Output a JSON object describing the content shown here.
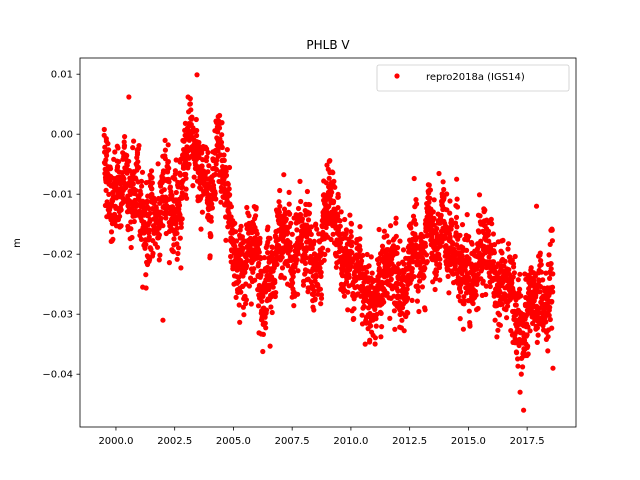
{
  "chart_data": {
    "type": "scatter",
    "title": "PHLB V",
    "xlabel": "",
    "ylabel": "m",
    "xlim": [
      1998.47,
      2019.58
    ],
    "ylim": [
      -0.0488,
      0.0127
    ],
    "xticks": [
      2000.0,
      2002.5,
      2005.0,
      2007.5,
      2010.0,
      2012.5,
      2015.0,
      2017.5
    ],
    "xtick_labels": [
      "2000.0",
      "2002.5",
      "2005.0",
      "2007.5",
      "2010.0",
      "2012.5",
      "2015.0",
      "2017.5"
    ],
    "yticks": [
      0.01,
      0.0,
      -0.01,
      -0.02,
      -0.03,
      -0.04
    ],
    "ytick_labels": [
      "0.01",
      "0.00",
      "−0.01",
      "−0.02",
      "−0.03",
      "−0.04"
    ],
    "grid": false,
    "legend": {
      "placement": "top-right",
      "entries": [
        "repro2018a (IGS14)"
      ]
    },
    "series": [
      {
        "name": "repro2018a (IGS14)",
        "color": "#ff0000",
        "marker": "circle",
        "x_range": [
          1999.5,
          2018.6
        ],
        "trend_x": [
          1999.5,
          2000,
          2000.5,
          2001,
          2001.5,
          2002,
          2002.5,
          2003,
          2003.5,
          2004,
          2004.5,
          2005,
          2005.5,
          2006,
          2006.5,
          2007,
          2007.5,
          2008,
          2008.5,
          2009,
          2009.5,
          2010,
          2010.5,
          2011,
          2011.5,
          2012,
          2012.5,
          2013,
          2013.5,
          2014,
          2014.5,
          2015,
          2015.5,
          2016,
          2016.5,
          2017,
          2017.5,
          2018,
          2018.6
        ],
        "trend_y": [
          -0.003,
          -0.011,
          -0.008,
          -0.012,
          -0.015,
          -0.012,
          -0.008,
          -0.006,
          -0.004,
          -0.008,
          -0.011,
          -0.02,
          -0.021,
          -0.019,
          -0.021,
          -0.019,
          -0.02,
          -0.019,
          -0.021,
          -0.02,
          -0.02,
          -0.021,
          -0.022,
          -0.024,
          -0.024,
          -0.026,
          -0.023,
          -0.023,
          -0.022,
          -0.02,
          -0.021,
          -0.019,
          -0.023,
          -0.024,
          -0.025,
          -0.024,
          -0.029,
          -0.028,
          -0.029
        ],
        "scatter_sd": 0.004,
        "points_per_year": 160,
        "outliers": [
          [
            2003.45,
            0.0099
          ],
          [
            2000.55,
            0.0062
          ],
          [
            2002.0,
            -0.031
          ],
          [
            2017.35,
            -0.046
          ],
          [
            2017.2,
            -0.043
          ],
          [
            2018.6,
            -0.039
          ],
          [
            2014.5,
            -0.0075
          ],
          [
            2017.9,
            -0.012
          ]
        ]
      }
    ]
  }
}
